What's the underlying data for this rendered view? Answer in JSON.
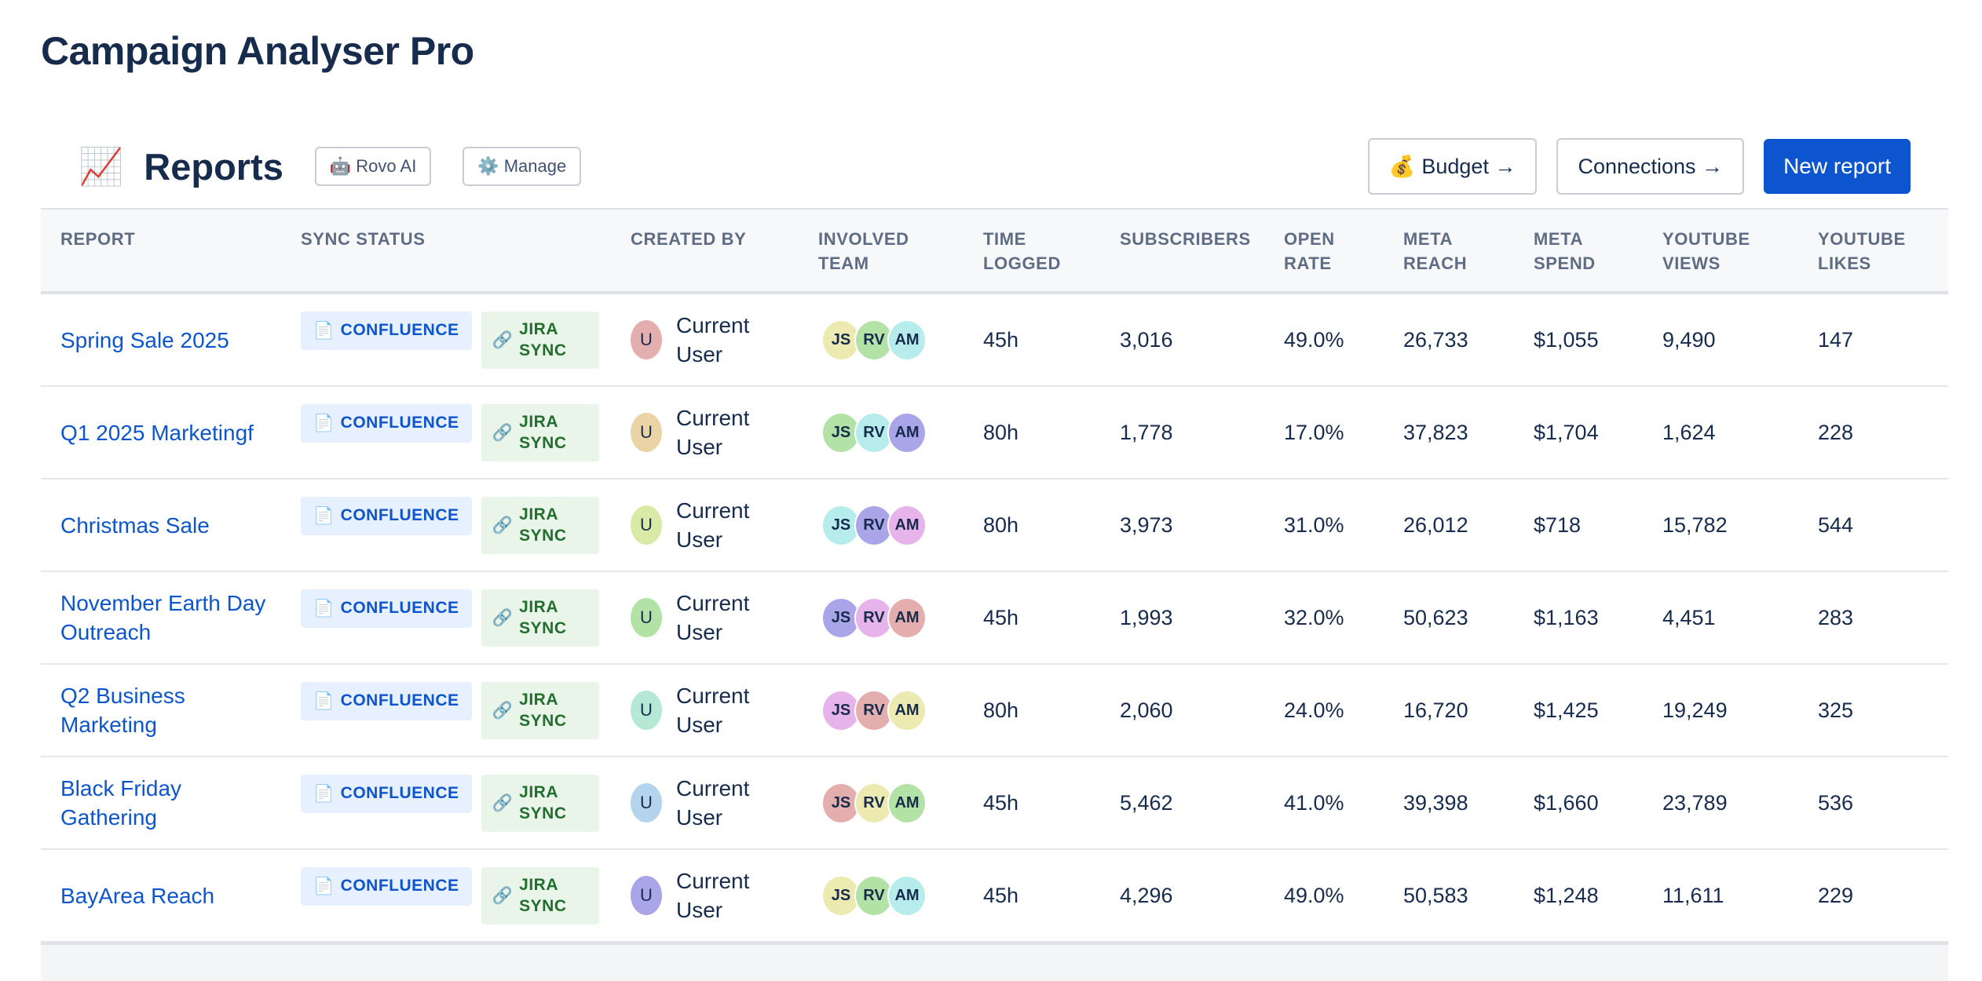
{
  "app": {
    "title": "Campaign Analyser Pro"
  },
  "header": {
    "emoji": "📈",
    "title": "Reports",
    "rovo": {
      "icon": "robot-icon",
      "glyph": "🤖",
      "label": "Rovo AI"
    },
    "manage": {
      "icon": "gear-icon",
      "glyph": "⚙️",
      "label": "Manage"
    },
    "budget": {
      "icon": "money-bag-icon",
      "glyph": "💰",
      "label": "Budget →"
    },
    "connections": {
      "label": "Connections →"
    },
    "new_report": {
      "label": "New report"
    }
  },
  "badges": {
    "confluence": {
      "icon": "document-icon",
      "glyph": "📄",
      "label": "CONFLUENCE"
    },
    "jira": {
      "icon": "link-icon",
      "glyph": "🔗",
      "line1": "JIRA",
      "line2": "SYNC"
    }
  },
  "columns": {
    "report": "REPORT",
    "sync_status": "SYNC STATUS",
    "created_by": "CREATED BY",
    "involved_team": [
      "INVOLVED",
      "TEAM"
    ],
    "time_logged": [
      "TIME",
      "LOGGED"
    ],
    "subscribers": "SUBSCRIBERS",
    "open_rate": [
      "OPEN",
      "RATE"
    ],
    "meta_reach": [
      "META",
      "REACH"
    ],
    "meta_spend": [
      "META",
      "SPEND"
    ],
    "youtube_views": [
      "YOUTUBE",
      "VIEWS"
    ],
    "youtube_likes": [
      "YOUTUBE",
      "LIKES"
    ]
  },
  "colors": {
    "primary": "#0c55cf",
    "confluence_bg": "#e7f0fe",
    "jira_bg": "#e9f5e9",
    "jira_text": "#216e2e",
    "avatar_yellow": "#eceab0",
    "avatar_green": "#b3e2a6",
    "avatar_cyan": "#b6ecec",
    "avatar_purple": "#a9a5e8",
    "avatar_pink": "#e6b3ea",
    "avatar_red": "#e4aeae"
  },
  "rows": [
    {
      "report": "Spring Sale 2025",
      "creator": {
        "initial": "U",
        "name_line1": "Current",
        "name_line2": "User",
        "color": "#e4aeae"
      },
      "team": [
        {
          "initials": "JS",
          "color": "#eceab0"
        },
        {
          "initials": "RV",
          "color": "#b3e2a6"
        },
        {
          "initials": "AM",
          "color": "#b6ecec"
        }
      ],
      "time_logged": "45h",
      "subscribers": "3,016",
      "open_rate": "49.0%",
      "meta_reach": "26,733",
      "meta_spend": "$1,055",
      "youtube_views": "9,490",
      "youtube_likes": "147"
    },
    {
      "report": "Q1 2025 Marketingf",
      "creator": {
        "initial": "U",
        "name_line1": "Current",
        "name_line2": "User",
        "color": "#ead4a6"
      },
      "team": [
        {
          "initials": "JS",
          "color": "#b3e2a6"
        },
        {
          "initials": "RV",
          "color": "#b6ecec"
        },
        {
          "initials": "AM",
          "color": "#a9a5e8"
        }
      ],
      "time_logged": "80h",
      "subscribers": "1,778",
      "open_rate": "17.0%",
      "meta_reach": "37,823",
      "meta_spend": "$1,704",
      "youtube_views": "1,624",
      "youtube_likes": "228"
    },
    {
      "report": "Christmas Sale",
      "creator": {
        "initial": "U",
        "name_line1": "Current",
        "name_line2": "User",
        "color": "#d9eaa6"
      },
      "team": [
        {
          "initials": "JS",
          "color": "#b6ecec"
        },
        {
          "initials": "RV",
          "color": "#a9a5e8"
        },
        {
          "initials": "AM",
          "color": "#e6b3ea"
        }
      ],
      "time_logged": "80h",
      "subscribers": "3,973",
      "open_rate": "31.0%",
      "meta_reach": "26,012",
      "meta_spend": "$718",
      "youtube_views": "15,782",
      "youtube_likes": "544"
    },
    {
      "report": "November Earth Day Outreach",
      "creator": {
        "initial": "U",
        "name_line1": "Current",
        "name_line2": "User",
        "color": "#b3e2a6"
      },
      "team": [
        {
          "initials": "JS",
          "color": "#a9a5e8"
        },
        {
          "initials": "RV",
          "color": "#e6b3ea"
        },
        {
          "initials": "AM",
          "color": "#e4aeae"
        }
      ],
      "time_logged": "45h",
      "subscribers": "1,993",
      "open_rate": "32.0%",
      "meta_reach": "50,623",
      "meta_spend": "$1,163",
      "youtube_views": "4,451",
      "youtube_likes": "283"
    },
    {
      "report": "Q2 Business Marketing",
      "creator": {
        "initial": "U",
        "name_line1": "Current",
        "name_line2": "User",
        "color": "#b6e8d6"
      },
      "team": [
        {
          "initials": "JS",
          "color": "#e6b3ea"
        },
        {
          "initials": "RV",
          "color": "#e4aeae"
        },
        {
          "initials": "AM",
          "color": "#eceab0"
        }
      ],
      "time_logged": "80h",
      "subscribers": "2,060",
      "open_rate": "24.0%",
      "meta_reach": "16,720",
      "meta_spend": "$1,425",
      "youtube_views": "19,249",
      "youtube_likes": "325"
    },
    {
      "report": "Black Friday Gathering",
      "creator": {
        "initial": "U",
        "name_line1": "Current",
        "name_line2": "User",
        "color": "#b3d4ec"
      },
      "team": [
        {
          "initials": "JS",
          "color": "#e4aeae"
        },
        {
          "initials": "RV",
          "color": "#eceab0"
        },
        {
          "initials": "AM",
          "color": "#b3e2a6"
        }
      ],
      "time_logged": "45h",
      "subscribers": "5,462",
      "open_rate": "41.0%",
      "meta_reach": "39,398",
      "meta_spend": "$1,660",
      "youtube_views": "23,789",
      "youtube_likes": "536"
    },
    {
      "report": "BayArea Reach",
      "creator": {
        "initial": "U",
        "name_line1": "Current",
        "name_line2": "User",
        "color": "#a9a5e8"
      },
      "team": [
        {
          "initials": "JS",
          "color": "#eceab0"
        },
        {
          "initials": "RV",
          "color": "#b3e2a6"
        },
        {
          "initials": "AM",
          "color": "#b6ecec"
        }
      ],
      "time_logged": "45h",
      "subscribers": "4,296",
      "open_rate": "49.0%",
      "meta_reach": "50,583",
      "meta_spend": "$1,248",
      "youtube_views": "11,611",
      "youtube_likes": "229"
    }
  ]
}
